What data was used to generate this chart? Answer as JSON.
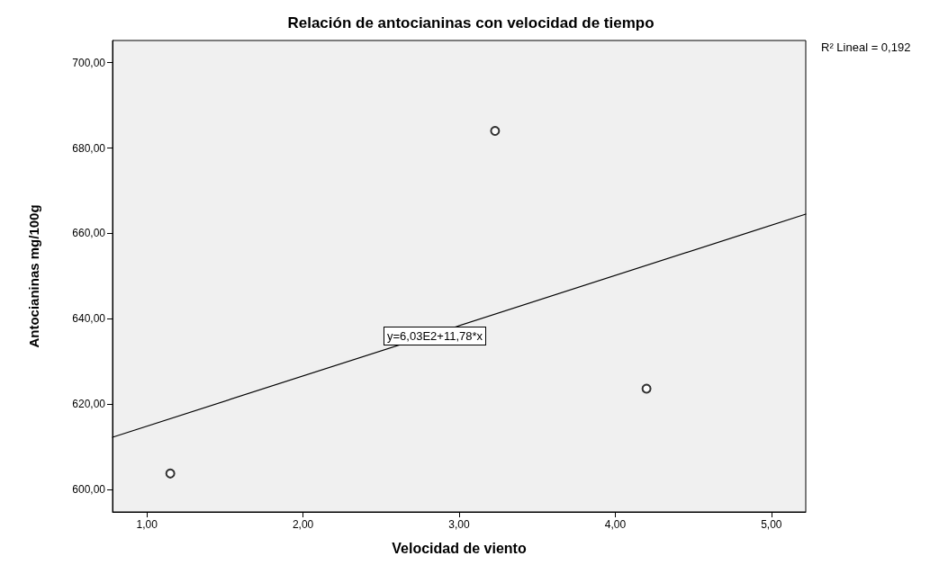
{
  "chart_data": {
    "type": "scatter",
    "title": "Relación de antocianinas con velocidad de tiempo",
    "xlabel": "Velocidad de viento",
    "ylabel": "Antocianinas mg/100g",
    "annotations": [
      "y=6,03E2+11,78*x",
      "R² Lineal = 0,192"
    ],
    "series": [
      {
        "color": "#000000",
        "marker": "circle",
        "x": [
          1.15,
          3.23,
          4.2
        ],
        "values": [
          603.7,
          684.0,
          623.6
        ]
      },
      {
        "type": "line",
        "color": "#000000",
        "marker": "none",
        "line_style": "solid",
        "x": [
          0.78,
          5.22
        ],
        "values": [
          612.2,
          664.5
        ]
      }
    ],
    "xlim": [
      0.78,
      5.22
    ],
    "ylim": [
      594.7,
      705.2
    ],
    "xticks": [
      {
        "value": 1,
        "label": "1,00"
      },
      {
        "value": 2,
        "label": "2,00"
      },
      {
        "value": 3,
        "label": "3,00"
      },
      {
        "value": 4,
        "label": "4,00"
      },
      {
        "value": 5,
        "label": "5,00"
      }
    ],
    "yticks": [
      {
        "value": 600,
        "label": "600,00"
      },
      {
        "value": 620,
        "label": "620,00"
      },
      {
        "value": 640,
        "label": "640,00"
      },
      {
        "value": 660,
        "label": "660,00"
      },
      {
        "value": 680,
        "label": "680,00"
      },
      {
        "value": 700,
        "label": "700,00"
      }
    ],
    "grid": false
  }
}
